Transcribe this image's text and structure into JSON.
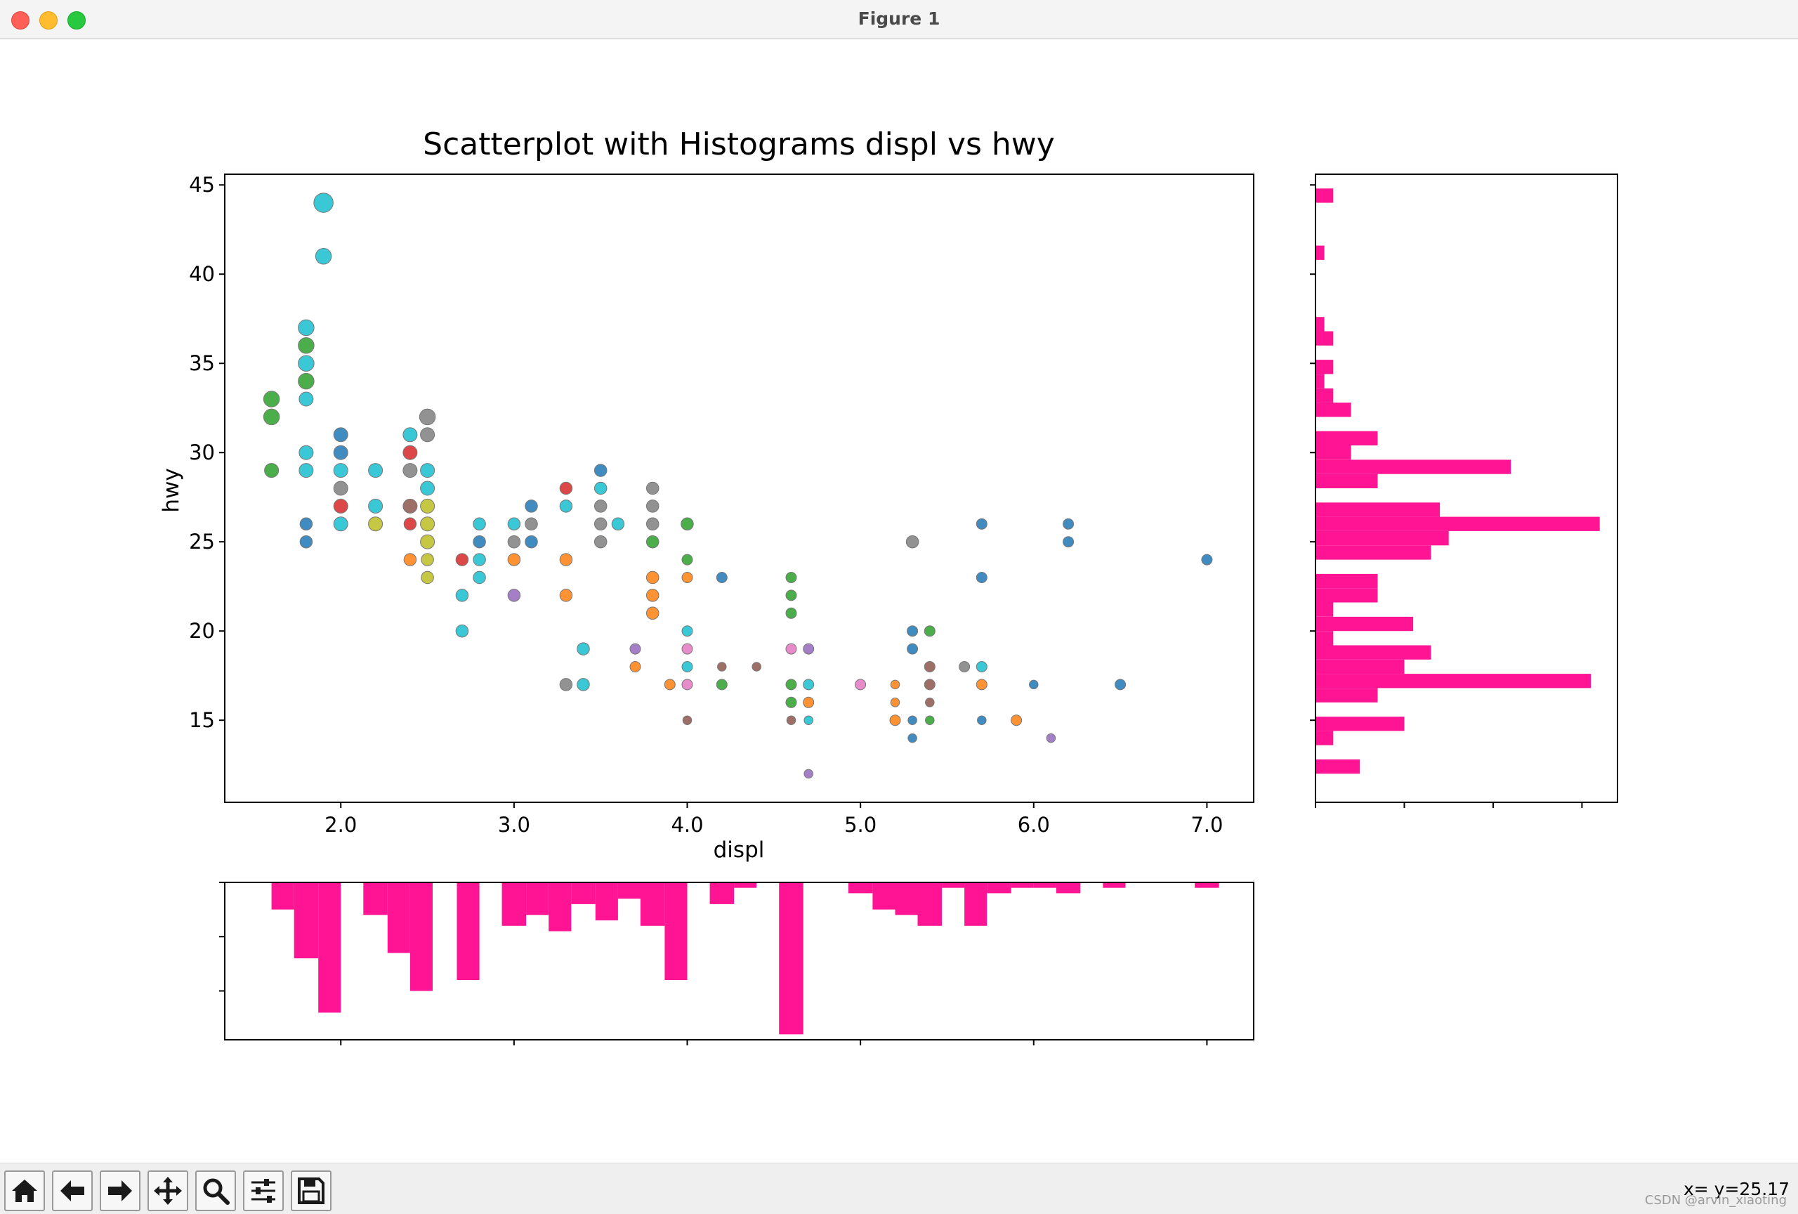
{
  "window": {
    "title": "Figure 1"
  },
  "toolbar": {
    "buttons": [
      {
        "name": "home-icon"
      },
      {
        "name": "back-arrow-icon"
      },
      {
        "name": "forward-arrow-icon"
      },
      {
        "name": "pan-icon"
      },
      {
        "name": "zoom-icon"
      },
      {
        "name": "configure-subplots-icon"
      },
      {
        "name": "save-icon"
      }
    ],
    "coordinate_readout": "x= y=25.17",
    "watermark": "CSDN @arvin_xiaoting"
  },
  "colors": {
    "histogram": "#ff1493",
    "marker_edge": "#777777"
  },
  "chart_data": {
    "type": "scatter",
    "title": "Scatterplot with Histograms displ vs hwy",
    "xlabel": "displ",
    "ylabel": "hwy",
    "xlim": [
      1.33,
      7.27
    ],
    "ylim": [
      10.4,
      45.6
    ],
    "xticks": [
      2.0,
      3.0,
      4.0,
      5.0,
      6.0,
      7.0
    ],
    "xtick_labels": [
      "2.0",
      "3.0",
      "4.0",
      "5.0",
      "6.0",
      "7.0"
    ],
    "yticks": [
      15,
      20,
      25,
      30,
      35,
      40,
      45
    ],
    "ytick_labels": [
      "15",
      "20",
      "25",
      "30",
      "35",
      "40",
      "45"
    ],
    "points": [
      {
        "x": 1.9,
        "y": 44,
        "c": "#17becf",
        "s": 11
      },
      {
        "x": 1.9,
        "y": 41,
        "c": "#17becf",
        "s": 9
      },
      {
        "x": 1.8,
        "y": 37,
        "c": "#17becf",
        "s": 9
      },
      {
        "x": 1.8,
        "y": 36,
        "c": "#2ca02c",
        "s": 9
      },
      {
        "x": 1.8,
        "y": 35,
        "c": "#17becf",
        "s": 9
      },
      {
        "x": 1.8,
        "y": 34,
        "c": "#2ca02c",
        "s": 9
      },
      {
        "x": 1.8,
        "y": 33,
        "c": "#17becf",
        "s": 8
      },
      {
        "x": 1.8,
        "y": 30,
        "c": "#17becf",
        "s": 8
      },
      {
        "x": 1.8,
        "y": 29,
        "c": "#17becf",
        "s": 8
      },
      {
        "x": 1.8,
        "y": 26,
        "c": "#1f77b4",
        "s": 7
      },
      {
        "x": 1.8,
        "y": 25,
        "c": "#1f77b4",
        "s": 7
      },
      {
        "x": 1.6,
        "y": 33,
        "c": "#2ca02c",
        "s": 9
      },
      {
        "x": 1.6,
        "y": 32,
        "c": "#2ca02c",
        "s": 9
      },
      {
        "x": 1.6,
        "y": 29,
        "c": "#2ca02c",
        "s": 8
      },
      {
        "x": 2.0,
        "y": 31,
        "c": "#1f77b4",
        "s": 8
      },
      {
        "x": 2.0,
        "y": 30,
        "c": "#1f77b4",
        "s": 8
      },
      {
        "x": 2.0,
        "y": 29,
        "c": "#17becf",
        "s": 8
      },
      {
        "x": 2.0,
        "y": 28,
        "c": "#7f7f7f",
        "s": 8
      },
      {
        "x": 2.0,
        "y": 27,
        "c": "#d62728",
        "s": 8
      },
      {
        "x": 2.0,
        "y": 26,
        "c": "#17becf",
        "s": 8
      },
      {
        "x": 2.2,
        "y": 29,
        "c": "#17becf",
        "s": 8
      },
      {
        "x": 2.2,
        "y": 27,
        "c": "#17becf",
        "s": 8
      },
      {
        "x": 2.2,
        "y": 26,
        "c": "#bcbd22",
        "s": 8
      },
      {
        "x": 2.4,
        "y": 31,
        "c": "#17becf",
        "s": 8
      },
      {
        "x": 2.4,
        "y": 30,
        "c": "#d62728",
        "s": 8
      },
      {
        "x": 2.4,
        "y": 29,
        "c": "#7f7f7f",
        "s": 8
      },
      {
        "x": 2.4,
        "y": 27,
        "c": "#8c564b",
        "s": 8
      },
      {
        "x": 2.4,
        "y": 26,
        "c": "#d62728",
        "s": 7
      },
      {
        "x": 2.4,
        "y": 24,
        "c": "#ff7f0e",
        "s": 7
      },
      {
        "x": 2.5,
        "y": 32,
        "c": "#7f7f7f",
        "s": 9
      },
      {
        "x": 2.5,
        "y": 31,
        "c": "#7f7f7f",
        "s": 8
      },
      {
        "x": 2.5,
        "y": 29,
        "c": "#17becf",
        "s": 8
      },
      {
        "x": 2.5,
        "y": 28,
        "c": "#17becf",
        "s": 8
      },
      {
        "x": 2.5,
        "y": 27,
        "c": "#bcbd22",
        "s": 8
      },
      {
        "x": 2.5,
        "y": 26,
        "c": "#bcbd22",
        "s": 8
      },
      {
        "x": 2.5,
        "y": 25,
        "c": "#bcbd22",
        "s": 8
      },
      {
        "x": 2.5,
        "y": 24,
        "c": "#bcbd22",
        "s": 7
      },
      {
        "x": 2.5,
        "y": 23,
        "c": "#bcbd22",
        "s": 7
      },
      {
        "x": 2.7,
        "y": 24,
        "c": "#d62728",
        "s": 7
      },
      {
        "x": 2.7,
        "y": 22,
        "c": "#17becf",
        "s": 7
      },
      {
        "x": 2.7,
        "y": 20,
        "c": "#17becf",
        "s": 7
      },
      {
        "x": 2.8,
        "y": 26,
        "c": "#17becf",
        "s": 7
      },
      {
        "x": 2.8,
        "y": 25,
        "c": "#1f77b4",
        "s": 7
      },
      {
        "x": 2.8,
        "y": 24,
        "c": "#17becf",
        "s": 7
      },
      {
        "x": 2.8,
        "y": 23,
        "c": "#17becf",
        "s": 7
      },
      {
        "x": 3.0,
        "y": 26,
        "c": "#17becf",
        "s": 7
      },
      {
        "x": 3.0,
        "y": 25,
        "c": "#7f7f7f",
        "s": 7
      },
      {
        "x": 3.0,
        "y": 24,
        "c": "#ff7f0e",
        "s": 7
      },
      {
        "x": 3.0,
        "y": 22,
        "c": "#9467bd",
        "s": 7
      },
      {
        "x": 3.1,
        "y": 27,
        "c": "#1f77b4",
        "s": 7
      },
      {
        "x": 3.1,
        "y": 26,
        "c": "#7f7f7f",
        "s": 7
      },
      {
        "x": 3.1,
        "y": 25,
        "c": "#1f77b4",
        "s": 7
      },
      {
        "x": 3.3,
        "y": 28,
        "c": "#d62728",
        "s": 7
      },
      {
        "x": 3.3,
        "y": 27,
        "c": "#17becf",
        "s": 7
      },
      {
        "x": 3.3,
        "y": 24,
        "c": "#ff7f0e",
        "s": 7
      },
      {
        "x": 3.3,
        "y": 22,
        "c": "#ff7f0e",
        "s": 7
      },
      {
        "x": 3.3,
        "y": 17,
        "c": "#7f7f7f",
        "s": 7
      },
      {
        "x": 3.4,
        "y": 19,
        "c": "#17becf",
        "s": 7
      },
      {
        "x": 3.4,
        "y": 17,
        "c": "#17becf",
        "s": 7
      },
      {
        "x": 3.5,
        "y": 29,
        "c": "#1f77b4",
        "s": 7
      },
      {
        "x": 3.5,
        "y": 28,
        "c": "#17becf",
        "s": 7
      },
      {
        "x": 3.5,
        "y": 27,
        "c": "#7f7f7f",
        "s": 7
      },
      {
        "x": 3.5,
        "y": 26,
        "c": "#7f7f7f",
        "s": 7
      },
      {
        "x": 3.5,
        "y": 25,
        "c": "#7f7f7f",
        "s": 7
      },
      {
        "x": 3.6,
        "y": 26,
        "c": "#17becf",
        "s": 7
      },
      {
        "x": 3.7,
        "y": 19,
        "c": "#9467bd",
        "s": 6
      },
      {
        "x": 3.7,
        "y": 18,
        "c": "#ff7f0e",
        "s": 6
      },
      {
        "x": 3.8,
        "y": 28,
        "c": "#7f7f7f",
        "s": 7
      },
      {
        "x": 3.8,
        "y": 27,
        "c": "#7f7f7f",
        "s": 7
      },
      {
        "x": 3.8,
        "y": 26,
        "c": "#7f7f7f",
        "s": 7
      },
      {
        "x": 3.8,
        "y": 25,
        "c": "#2ca02c",
        "s": 7
      },
      {
        "x": 3.8,
        "y": 23,
        "c": "#ff7f0e",
        "s": 7
      },
      {
        "x": 3.8,
        "y": 22,
        "c": "#ff7f0e",
        "s": 7
      },
      {
        "x": 3.8,
        "y": 21,
        "c": "#ff7f0e",
        "s": 7
      },
      {
        "x": 3.9,
        "y": 17,
        "c": "#ff7f0e",
        "s": 6
      },
      {
        "x": 4.0,
        "y": 26,
        "c": "#2ca02c",
        "s": 7
      },
      {
        "x": 4.0,
        "y": 24,
        "c": "#2ca02c",
        "s": 6
      },
      {
        "x": 4.0,
        "y": 23,
        "c": "#ff7f0e",
        "s": 6
      },
      {
        "x": 4.0,
        "y": 20,
        "c": "#17becf",
        "s": 6
      },
      {
        "x": 4.0,
        "y": 19,
        "c": "#e377c2",
        "s": 6
      },
      {
        "x": 4.0,
        "y": 18,
        "c": "#17becf",
        "s": 6
      },
      {
        "x": 4.0,
        "y": 17,
        "c": "#e377c2",
        "s": 6
      },
      {
        "x": 4.0,
        "y": 15,
        "c": "#8c564b",
        "s": 5
      },
      {
        "x": 4.2,
        "y": 23,
        "c": "#1f77b4",
        "s": 6
      },
      {
        "x": 4.2,
        "y": 18,
        "c": "#8c564b",
        "s": 5
      },
      {
        "x": 4.2,
        "y": 17,
        "c": "#2ca02c",
        "s": 6
      },
      {
        "x": 4.4,
        "y": 18,
        "c": "#8c564b",
        "s": 5
      },
      {
        "x": 4.6,
        "y": 23,
        "c": "#2ca02c",
        "s": 6
      },
      {
        "x": 4.6,
        "y": 22,
        "c": "#2ca02c",
        "s": 6
      },
      {
        "x": 4.6,
        "y": 21,
        "c": "#2ca02c",
        "s": 6
      },
      {
        "x": 4.6,
        "y": 19,
        "c": "#e377c2",
        "s": 6
      },
      {
        "x": 4.6,
        "y": 17,
        "c": "#2ca02c",
        "s": 6
      },
      {
        "x": 4.6,
        "y": 16,
        "c": "#2ca02c",
        "s": 6
      },
      {
        "x": 4.6,
        "y": 15,
        "c": "#8c564b",
        "s": 5
      },
      {
        "x": 4.7,
        "y": 19,
        "c": "#9467bd",
        "s": 6
      },
      {
        "x": 4.7,
        "y": 17,
        "c": "#17becf",
        "s": 6
      },
      {
        "x": 4.7,
        "y": 16,
        "c": "#ff7f0e",
        "s": 6
      },
      {
        "x": 4.7,
        "y": 15,
        "c": "#17becf",
        "s": 5
      },
      {
        "x": 4.7,
        "y": 12,
        "c": "#9467bd",
        "s": 5
      },
      {
        "x": 5.0,
        "y": 17,
        "c": "#e377c2",
        "s": 6
      },
      {
        "x": 5.2,
        "y": 17,
        "c": "#ff7f0e",
        "s": 5
      },
      {
        "x": 5.2,
        "y": 16,
        "c": "#ff7f0e",
        "s": 5
      },
      {
        "x": 5.2,
        "y": 15,
        "c": "#ff7f0e",
        "s": 6
      },
      {
        "x": 5.3,
        "y": 25,
        "c": "#7f7f7f",
        "s": 7
      },
      {
        "x": 5.3,
        "y": 20,
        "c": "#1f77b4",
        "s": 6
      },
      {
        "x": 5.3,
        "y": 19,
        "c": "#1f77b4",
        "s": 6
      },
      {
        "x": 5.3,
        "y": 15,
        "c": "#1f77b4",
        "s": 5
      },
      {
        "x": 5.3,
        "y": 14,
        "c": "#1f77b4",
        "s": 5
      },
      {
        "x": 5.4,
        "y": 20,
        "c": "#2ca02c",
        "s": 6
      },
      {
        "x": 5.4,
        "y": 18,
        "c": "#8c564b",
        "s": 6
      },
      {
        "x": 5.4,
        "y": 17,
        "c": "#8c564b",
        "s": 6
      },
      {
        "x": 5.4,
        "y": 16,
        "c": "#8c564b",
        "s": 5
      },
      {
        "x": 5.4,
        "y": 15,
        "c": "#2ca02c",
        "s": 5
      },
      {
        "x": 5.6,
        "y": 18,
        "c": "#7f7f7f",
        "s": 6
      },
      {
        "x": 5.7,
        "y": 26,
        "c": "#1f77b4",
        "s": 6
      },
      {
        "x": 5.7,
        "y": 23,
        "c": "#1f77b4",
        "s": 6
      },
      {
        "x": 5.7,
        "y": 18,
        "c": "#17becf",
        "s": 6
      },
      {
        "x": 5.7,
        "y": 17,
        "c": "#ff7f0e",
        "s": 6
      },
      {
        "x": 5.7,
        "y": 15,
        "c": "#1f77b4",
        "s": 5
      },
      {
        "x": 5.9,
        "y": 15,
        "c": "#ff7f0e",
        "s": 6
      },
      {
        "x": 6.0,
        "y": 17,
        "c": "#1f77b4",
        "s": 5
      },
      {
        "x": 6.1,
        "y": 14,
        "c": "#9467bd",
        "s": 5
      },
      {
        "x": 6.2,
        "y": 26,
        "c": "#1f77b4",
        "s": 6
      },
      {
        "x": 6.2,
        "y": 25,
        "c": "#1f77b4",
        "s": 6
      },
      {
        "x": 6.5,
        "y": 17,
        "c": "#1f77b4",
        "s": 6
      },
      {
        "x": 7.0,
        "y": 24,
        "c": "#1f77b4",
        "s": 6
      }
    ],
    "hist_y": {
      "orientation": "horizontal",
      "bins": [
        {
          "lo": 12.0,
          "hi": 12.8,
          "count": 5
        },
        {
          "lo": 12.8,
          "hi": 13.6,
          "count": 0
        },
        {
          "lo": 13.6,
          "hi": 14.4,
          "count": 2
        },
        {
          "lo": 14.4,
          "hi": 15.2,
          "count": 10
        },
        {
          "lo": 15.2,
          "hi": 16.0,
          "count": 0
        },
        {
          "lo": 16.0,
          "hi": 16.8,
          "count": 7
        },
        {
          "lo": 16.8,
          "hi": 17.6,
          "count": 31
        },
        {
          "lo": 17.6,
          "hi": 18.4,
          "count": 10
        },
        {
          "lo": 18.4,
          "hi": 19.2,
          "count": 13
        },
        {
          "lo": 19.2,
          "hi": 20.0,
          "count": 2
        },
        {
          "lo": 20.0,
          "hi": 20.8,
          "count": 11
        },
        {
          "lo": 20.8,
          "hi": 21.6,
          "count": 2
        },
        {
          "lo": 21.6,
          "hi": 22.4,
          "count": 7
        },
        {
          "lo": 22.4,
          "hi": 23.2,
          "count": 7
        },
        {
          "lo": 23.2,
          "hi": 24.0,
          "count": 0
        },
        {
          "lo": 24.0,
          "hi": 24.8,
          "count": 13
        },
        {
          "lo": 24.8,
          "hi": 25.6,
          "count": 15
        },
        {
          "lo": 25.6,
          "hi": 26.4,
          "count": 32
        },
        {
          "lo": 26.4,
          "hi": 27.2,
          "count": 14
        },
        {
          "lo": 27.2,
          "hi": 28.0,
          "count": 0
        },
        {
          "lo": 28.0,
          "hi": 28.8,
          "count": 7
        },
        {
          "lo": 28.8,
          "hi": 29.6,
          "count": 22
        },
        {
          "lo": 29.6,
          "hi": 30.4,
          "count": 4
        },
        {
          "lo": 30.4,
          "hi": 31.2,
          "count": 7
        },
        {
          "lo": 31.2,
          "hi": 32.0,
          "count": 0
        },
        {
          "lo": 32.0,
          "hi": 32.8,
          "count": 4
        },
        {
          "lo": 32.8,
          "hi": 33.6,
          "count": 2
        },
        {
          "lo": 33.6,
          "hi": 34.4,
          "count": 1
        },
        {
          "lo": 34.4,
          "hi": 35.2,
          "count": 2
        },
        {
          "lo": 35.2,
          "hi": 36.0,
          "count": 0
        },
        {
          "lo": 36.0,
          "hi": 36.8,
          "count": 2
        },
        {
          "lo": 36.8,
          "hi": 37.6,
          "count": 1
        },
        {
          "lo": 37.6,
          "hi": 38.4,
          "count": 0
        },
        {
          "lo": 38.4,
          "hi": 39.2,
          "count": 0
        },
        {
          "lo": 39.2,
          "hi": 40.0,
          "count": 0
        },
        {
          "lo": 40.0,
          "hi": 40.8,
          "count": 0
        },
        {
          "lo": 40.8,
          "hi": 41.6,
          "count": 1
        },
        {
          "lo": 41.6,
          "hi": 42.4,
          "count": 0
        },
        {
          "lo": 42.4,
          "hi": 43.2,
          "count": 0
        },
        {
          "lo": 43.2,
          "hi": 44.0,
          "count": 0
        },
        {
          "lo": 44.0,
          "hi": 44.8,
          "count": 2
        }
      ],
      "max_count": 34
    },
    "hist_x": {
      "orientation": "vertical-inverted",
      "bins": [
        {
          "lo": 1.6,
          "hi": 1.73,
          "count": 5
        },
        {
          "lo": 1.73,
          "hi": 1.87,
          "count": 14
        },
        {
          "lo": 1.87,
          "hi": 2.0,
          "count": 24
        },
        {
          "lo": 2.0,
          "hi": 2.13,
          "count": 0
        },
        {
          "lo": 2.13,
          "hi": 2.27,
          "count": 6
        },
        {
          "lo": 2.27,
          "hi": 2.4,
          "count": 13
        },
        {
          "lo": 2.4,
          "hi": 2.53,
          "count": 20
        },
        {
          "lo": 2.53,
          "hi": 2.67,
          "count": 0
        },
        {
          "lo": 2.67,
          "hi": 2.8,
          "count": 18
        },
        {
          "lo": 2.8,
          "hi": 2.93,
          "count": 0
        },
        {
          "lo": 2.93,
          "hi": 3.07,
          "count": 8
        },
        {
          "lo": 3.07,
          "hi": 3.2,
          "count": 6
        },
        {
          "lo": 3.2,
          "hi": 3.33,
          "count": 9
        },
        {
          "lo": 3.33,
          "hi": 3.47,
          "count": 4
        },
        {
          "lo": 3.47,
          "hi": 3.6,
          "count": 7
        },
        {
          "lo": 3.6,
          "hi": 3.73,
          "count": 3
        },
        {
          "lo": 3.73,
          "hi": 3.87,
          "count": 8
        },
        {
          "lo": 3.87,
          "hi": 4.0,
          "count": 18
        },
        {
          "lo": 4.0,
          "hi": 4.13,
          "count": 0
        },
        {
          "lo": 4.13,
          "hi": 4.27,
          "count": 4
        },
        {
          "lo": 4.27,
          "hi": 4.4,
          "count": 1
        },
        {
          "lo": 4.4,
          "hi": 4.53,
          "count": 0
        },
        {
          "lo": 4.53,
          "hi": 4.67,
          "count": 28
        },
        {
          "lo": 4.67,
          "hi": 4.8,
          "count": 0
        },
        {
          "lo": 4.8,
          "hi": 4.93,
          "count": 0
        },
        {
          "lo": 4.93,
          "hi": 5.07,
          "count": 2
        },
        {
          "lo": 5.07,
          "hi": 5.2,
          "count": 5
        },
        {
          "lo": 5.2,
          "hi": 5.33,
          "count": 6
        },
        {
          "lo": 5.33,
          "hi": 5.47,
          "count": 8
        },
        {
          "lo": 5.47,
          "hi": 5.6,
          "count": 1
        },
        {
          "lo": 5.6,
          "hi": 5.73,
          "count": 8
        },
        {
          "lo": 5.73,
          "hi": 5.87,
          "count": 2
        },
        {
          "lo": 5.87,
          "hi": 6.0,
          "count": 1
        },
        {
          "lo": 6.0,
          "hi": 6.13,
          "count": 1
        },
        {
          "lo": 6.13,
          "hi": 6.27,
          "count": 2
        },
        {
          "lo": 6.27,
          "hi": 6.4,
          "count": 0
        },
        {
          "lo": 6.4,
          "hi": 6.53,
          "count": 1
        },
        {
          "lo": 6.53,
          "hi": 6.67,
          "count": 0
        },
        {
          "lo": 6.67,
          "hi": 6.8,
          "count": 0
        },
        {
          "lo": 6.8,
          "hi": 6.93,
          "count": 0
        },
        {
          "lo": 6.93,
          "hi": 7.07,
          "count": 1
        }
      ],
      "max_count": 29
    }
  }
}
